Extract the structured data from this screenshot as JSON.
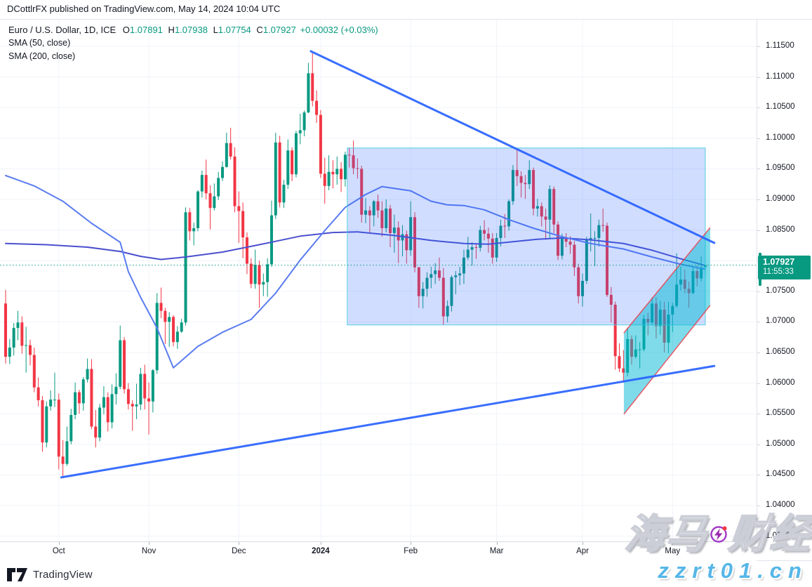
{
  "header": {
    "attribution": "DCottlrFX published on TradingView.com, May 14, 2024 10:04 UTC"
  },
  "legend": {
    "symbol": "Euro / U.S. Dollar, 1D, ICE",
    "o": {
      "k": "O",
      "v": "1.07891"
    },
    "h": {
      "k": "H",
      "v": "1.07938"
    },
    "l": {
      "k": "L",
      "v": "1.07754"
    },
    "c": {
      "k": "C",
      "v": "1.07927"
    },
    "change": "+0.00032 (+0.03%)",
    "sma50_label": "SMA (50, close)",
    "sma200_label": "SMA (200, close)"
  },
  "price_label": {
    "price": "1.07927",
    "countdown": "11:55:33"
  },
  "watermark": {
    "title": "海马财经",
    "site": "zzrt01.cn",
    "icon": "lightning-icon"
  },
  "footer": {
    "brand": "TradingView"
  },
  "colors": {
    "up": "#089981",
    "down": "#f23645",
    "sma50": "#5b7cf0",
    "sma200": "#4b50ce",
    "trendline": "#2962ff",
    "rect_fill": "rgba(41,98,255,0.22)",
    "rect_border": "#53d1e2",
    "channel_fill": "rgba(0,184,212,0.5)",
    "channel_border": "rgba(242,54,69,0.8)",
    "grid": "#f0f3fa",
    "price_line": "#089981",
    "axis_text": "#131722"
  },
  "chart_data": {
    "type": "candlestick",
    "title": "Euro / U.S. Dollar, 1D, ICE",
    "symbol": "EURUSD",
    "interval": "1D",
    "exchange": "ICE",
    "last": {
      "open": 1.07891,
      "high": 1.07938,
      "low": 1.07754,
      "close": 1.07927,
      "change": "+0.00032 (+0.03%)"
    },
    "ylim": [
      1.034,
      1.1194
    ],
    "grid": true,
    "y_ticks": [
      1.115,
      1.11,
      1.105,
      1.1,
      1.095,
      1.09,
      1.085,
      1.08,
      1.075,
      1.07,
      1.065,
      1.06,
      1.055,
      1.05,
      1.045,
      1.04,
      1.035
    ],
    "x_ticks": [
      {
        "label": "Oct",
        "i": 13
      },
      {
        "label": "Nov",
        "i": 35
      },
      {
        "label": "Dec",
        "i": 57
      },
      {
        "label": "2024",
        "i": 77,
        "strong": true
      },
      {
        "label": "Feb",
        "i": 99
      },
      {
        "label": "Mar",
        "i": 120
      },
      {
        "label": "Apr",
        "i": 141
      },
      {
        "label": "May",
        "i": 163
      }
    ],
    "current_price": 1.07927,
    "axis_range_bar": {
      "p1": 1.0813,
      "p2": 1.0759
    },
    "candles": [
      [
        1.073,
        1.0752,
        1.0632,
        1.0643
      ],
      [
        1.0643,
        1.0672,
        1.0631,
        1.0658
      ],
      [
        1.0658,
        1.0698,
        1.0645,
        1.069
      ],
      [
        1.069,
        1.0718,
        1.067,
        1.0699
      ],
      [
        1.0699,
        1.0709,
        1.0648,
        1.0661
      ],
      [
        1.0661,
        1.0692,
        1.0617,
        1.0662
      ],
      [
        1.0662,
        1.0671,
        1.0629,
        1.0646
      ],
      [
        1.0646,
        1.0658,
        1.0585,
        1.0593
      ],
      [
        1.0593,
        1.0609,
        1.0562,
        1.0572
      ],
      [
        1.0572,
        1.0579,
        1.0488,
        1.0503
      ],
      [
        1.0503,
        1.057,
        1.0495,
        1.0562
      ],
      [
        1.0562,
        1.0588,
        1.0555,
        1.0573
      ],
      [
        1.0573,
        1.0617,
        1.0561,
        1.0573
      ],
      [
        1.0573,
        1.0583,
        1.0459,
        1.048
      ],
      [
        1.048,
        1.0507,
        1.0448,
        1.0468
      ],
      [
        1.0468,
        1.0529,
        1.0465,
        1.0505
      ],
      [
        1.0505,
        1.0558,
        1.05,
        1.0548
      ],
      [
        1.0548,
        1.0601,
        1.0541,
        1.0585
      ],
      [
        1.0585,
        1.0589,
        1.055,
        1.0567
      ],
      [
        1.0567,
        1.061,
        1.0555,
        1.0606
      ],
      [
        1.0606,
        1.064,
        1.0601,
        1.0623
      ],
      [
        1.0623,
        1.0639,
        1.0525,
        1.0529
      ],
      [
        1.0529,
        1.0556,
        1.0495,
        1.0511
      ],
      [
        1.0511,
        1.0566,
        1.0505,
        1.056
      ],
      [
        1.056,
        1.0595,
        1.0549,
        1.0577
      ],
      [
        1.0577,
        1.0585,
        1.0521,
        1.0536
      ],
      [
        1.0536,
        1.0598,
        1.0526,
        1.0582
      ],
      [
        1.0582,
        1.0616,
        1.0565,
        1.0594
      ],
      [
        1.0594,
        1.0694,
        1.059,
        1.067
      ],
      [
        1.067,
        1.0675,
        1.0583,
        1.059
      ],
      [
        1.059,
        1.06,
        1.0557,
        1.0566
      ],
      [
        1.0566,
        1.0572,
        1.0522,
        1.0562
      ],
      [
        1.0562,
        1.0599,
        1.0541,
        1.0565
      ],
      [
        1.0565,
        1.0625,
        1.0556,
        1.0615
      ],
      [
        1.0615,
        1.063,
        1.0557,
        1.0575
      ],
      [
        1.0575,
        1.0601,
        1.0516,
        1.057
      ],
      [
        1.057,
        1.0623,
        1.0552,
        1.0621
      ],
      [
        1.0621,
        1.0747,
        1.0615,
        1.0731
      ],
      [
        1.0731,
        1.0756,
        1.0706,
        1.0718
      ],
      [
        1.0718,
        1.0723,
        1.0664,
        1.07
      ],
      [
        1.07,
        1.0716,
        1.0659,
        1.0708
      ],
      [
        1.0708,
        1.0711,
        1.066,
        1.0667
      ],
      [
        1.0667,
        1.0693,
        1.0656,
        1.0684
      ],
      [
        1.0684,
        1.0705,
        1.0682,
        1.0699
      ],
      [
        1.0699,
        1.0887,
        1.0694,
        1.0879
      ],
      [
        1.0879,
        1.0886,
        1.0833,
        1.0848
      ],
      [
        1.0848,
        1.0862,
        1.0825,
        1.0853
      ],
      [
        1.0853,
        1.0915,
        1.0848,
        1.0913
      ],
      [
        1.0913,
        1.0947,
        1.0903,
        1.094
      ],
      [
        1.094,
        1.0965,
        1.09,
        1.091
      ],
      [
        1.091,
        1.0923,
        1.0851,
        1.0886
      ],
      [
        1.0886,
        1.0926,
        1.0882,
        1.0905
      ],
      [
        1.0905,
        1.0945,
        1.0899,
        1.0935
      ],
      [
        1.0935,
        1.0962,
        1.093,
        1.0953
      ],
      [
        1.0953,
        1.1009,
        1.0952,
        1.0992
      ],
      [
        1.0992,
        1.1017,
        1.0965,
        1.097
      ],
      [
        1.097,
        1.0985,
        1.0879,
        1.0889
      ],
      [
        1.0889,
        1.0913,
        1.0829,
        1.0881
      ],
      [
        1.0881,
        1.0895,
        1.0804,
        1.0838
      ],
      [
        1.0838,
        1.0846,
        1.0778,
        1.0795
      ],
      [
        1.0795,
        1.0804,
        1.0755,
        1.0762
      ],
      [
        1.0762,
        1.0818,
        1.0754,
        1.0793
      ],
      [
        1.0793,
        1.08,
        1.0723,
        1.0761
      ],
      [
        1.0761,
        1.0779,
        1.0742,
        1.0765
      ],
      [
        1.0765,
        1.0804,
        1.0741,
        1.0794
      ],
      [
        1.0794,
        1.0898,
        1.079,
        1.0874
      ],
      [
        1.0874,
        1.1009,
        1.0868,
        1.0993
      ],
      [
        1.0993,
        1.1004,
        1.0887,
        1.0895
      ],
      [
        1.0895,
        1.0932,
        1.0886,
        1.0924
      ],
      [
        1.0924,
        1.0998,
        1.0917,
        1.098
      ],
      [
        1.098,
        1.0985,
        1.093,
        1.0941
      ],
      [
        1.0941,
        1.1012,
        1.0936,
        1.1008
      ],
      [
        1.1008,
        1.104,
        1.099,
        1.1013
      ],
      [
        1.1013,
        1.1045,
        1.1003,
        1.1042
      ],
      [
        1.1042,
        1.1123,
        1.1041,
        1.1106
      ],
      [
        1.1106,
        1.1139,
        1.1052,
        1.1061
      ],
      [
        1.1061,
        1.1078,
        1.1025,
        1.1038
      ],
      [
        1.1038,
        1.1046,
        1.0935,
        1.0942
      ],
      [
        1.0942,
        1.0968,
        1.0893,
        1.0922
      ],
      [
        1.0922,
        1.0972,
        1.0915,
        1.0945
      ],
      [
        1.0945,
        1.0964,
        1.0918,
        1.0941
      ],
      [
        1.0941,
        1.097,
        1.0924,
        1.095
      ],
      [
        1.095,
        1.0961,
        1.0912,
        1.0933
      ],
      [
        1.0933,
        1.0978,
        1.0921,
        1.0973
      ],
      [
        1.0973,
        1.0984,
        1.0952,
        1.0972
      ],
      [
        1.0972,
        1.0996,
        1.0941,
        1.0951
      ],
      [
        1.0951,
        1.0967,
        1.0934,
        1.095
      ],
      [
        1.095,
        1.0955,
        1.0862,
        1.0875
      ],
      [
        1.0875,
        1.0902,
        1.0861,
        1.0882
      ],
      [
        1.0882,
        1.0889,
        1.0845,
        1.0874
      ],
      [
        1.0874,
        1.0899,
        1.0856,
        1.0897
      ],
      [
        1.0897,
        1.0908,
        1.087,
        1.0882
      ],
      [
        1.0882,
        1.0897,
        1.0839,
        1.0853
      ],
      [
        1.0853,
        1.09,
        1.0846,
        1.0885
      ],
      [
        1.0885,
        1.0891,
        1.0822,
        1.0845
      ],
      [
        1.0845,
        1.0875,
        1.0813,
        1.0854
      ],
      [
        1.0854,
        1.0864,
        1.0796,
        1.0833
      ],
      [
        1.0833,
        1.0858,
        1.0807,
        1.0843
      ],
      [
        1.0843,
        1.0849,
        1.0795,
        1.0817
      ],
      [
        1.0817,
        1.0897,
        1.0808,
        1.0871
      ],
      [
        1.0871,
        1.0879,
        1.0781,
        1.0789
      ],
      [
        1.0789,
        1.079,
        1.0723,
        1.0742
      ],
      [
        1.0742,
        1.0765,
        1.0722,
        1.0754
      ],
      [
        1.0754,
        1.0781,
        1.0741,
        1.0772
      ],
      [
        1.0772,
        1.079,
        1.0755,
        1.0778
      ],
      [
        1.0778,
        1.0796,
        1.0762,
        1.0784
      ],
      [
        1.0784,
        1.0805,
        1.0767,
        1.0772
      ],
      [
        1.0772,
        1.0788,
        1.0695,
        1.0709
      ],
      [
        1.0709,
        1.0735,
        1.0699,
        1.0726
      ],
      [
        1.0726,
        1.0776,
        1.0717,
        1.0773
      ],
      [
        1.0773,
        1.0783,
        1.0745,
        1.0776
      ],
      [
        1.0776,
        1.079,
        1.076,
        1.0779
      ],
      [
        1.0779,
        1.0818,
        1.0762,
        1.0805
      ],
      [
        1.0805,
        1.0839,
        1.0801,
        1.0818
      ],
      [
        1.0818,
        1.083,
        1.0792,
        1.0822
      ],
      [
        1.0822,
        1.0828,
        1.0803,
        1.0821
      ],
      [
        1.0821,
        1.0857,
        1.0815,
        1.085
      ],
      [
        1.085,
        1.0866,
        1.0833,
        1.0844
      ],
      [
        1.0844,
        1.0854,
        1.0813,
        1.0836
      ],
      [
        1.0836,
        1.0845,
        1.0795,
        1.0805
      ],
      [
        1.0805,
        1.0845,
        1.0798,
        1.0837
      ],
      [
        1.0837,
        1.0867,
        1.0823,
        1.0857
      ],
      [
        1.0857,
        1.0876,
        1.0837,
        1.0856
      ],
      [
        1.0856,
        1.09,
        1.0849,
        1.0897
      ],
      [
        1.0897,
        1.0956,
        1.0891,
        1.0948
      ],
      [
        1.0948,
        1.0981,
        1.0922,
        1.0938
      ],
      [
        1.0938,
        1.0946,
        1.0903,
        1.0927
      ],
      [
        1.0927,
        1.094,
        1.0901,
        1.0925
      ],
      [
        1.0925,
        1.0964,
        1.0917,
        1.0948
      ],
      [
        1.0948,
        1.0952,
        1.0874,
        1.0885
      ],
      [
        1.0885,
        1.0901,
        1.0872,
        1.0889
      ],
      [
        1.0889,
        1.0895,
        1.0856,
        1.0872
      ],
      [
        1.0872,
        1.0885,
        1.0834,
        1.0867
      ],
      [
        1.0867,
        1.0923,
        1.0835,
        1.0917
      ],
      [
        1.0917,
        1.0921,
        1.0845,
        1.0859
      ],
      [
        1.0859,
        1.0864,
        1.0801,
        1.0808
      ],
      [
        1.0808,
        1.0844,
        1.0802,
        1.0837
      ],
      [
        1.0837,
        1.0845,
        1.0822,
        1.0831
      ],
      [
        1.0831,
        1.084,
        1.0811,
        1.0826
      ],
      [
        1.0826,
        1.0832,
        1.0775,
        1.0789
      ],
      [
        1.0789,
        1.0795,
        1.073,
        1.0742
      ],
      [
        1.0742,
        1.0779,
        1.0725,
        1.0767
      ],
      [
        1.0767,
        1.0839,
        1.0762,
        1.0835
      ],
      [
        1.0835,
        1.0877,
        1.0815,
        1.0837
      ],
      [
        1.0837,
        1.0848,
        1.0791,
        1.0837
      ],
      [
        1.0837,
        1.0867,
        1.0823,
        1.0858
      ],
      [
        1.0858,
        1.0885,
        1.0847,
        1.0857
      ],
      [
        1.0857,
        1.0862,
        1.0741,
        1.0744
      ],
      [
        1.0744,
        1.0757,
        1.0699,
        1.0728
      ],
      [
        1.0728,
        1.0733,
        1.0622,
        1.0644
      ],
      [
        1.0644,
        1.0665,
        1.0618,
        1.0624
      ],
      [
        1.0624,
        1.0654,
        1.0601,
        1.0617
      ],
      [
        1.0617,
        1.069,
        1.0611,
        1.0672
      ],
      [
        1.0672,
        1.0678,
        1.063,
        1.0643
      ],
      [
        1.0643,
        1.0678,
        1.064,
        1.0655
      ],
      [
        1.0655,
        1.0667,
        1.0624,
        1.0655
      ],
      [
        1.0655,
        1.0711,
        1.0652,
        1.0705
      ],
      [
        1.0705,
        1.0715,
        1.0678,
        1.0699
      ],
      [
        1.0699,
        1.074,
        1.0695,
        1.073
      ],
      [
        1.073,
        1.074,
        1.0673,
        1.0693
      ],
      [
        1.0693,
        1.0734,
        1.0679,
        1.072
      ],
      [
        1.072,
        1.0733,
        1.065,
        1.0666
      ],
      [
        1.0666,
        1.0733,
        1.0649,
        1.0712
      ],
      [
        1.0712,
        1.0731,
        1.0683,
        1.0726
      ],
      [
        1.0726,
        1.0812,
        1.0723,
        1.0761
      ],
      [
        1.0761,
        1.079,
        1.0751,
        1.0769
      ],
      [
        1.0769,
        1.0785,
        1.0747,
        1.0754
      ],
      [
        1.0754,
        1.0766,
        1.0723,
        1.0747
      ],
      [
        1.0747,
        1.0791,
        1.0745,
        1.0783
      ],
      [
        1.0783,
        1.0792,
        1.0758,
        1.0771
      ],
      [
        1.0771,
        1.0807,
        1.0766,
        1.0789
      ],
      [
        1.07891,
        1.07938,
        1.07754,
        1.07927
      ]
    ],
    "sma50": {
      "period": 50,
      "points": [
        [
          0,
          1.0939
        ],
        [
          7,
          1.0922
        ],
        [
          14,
          1.0897
        ],
        [
          21,
          1.0861
        ],
        [
          28,
          1.083
        ],
        [
          30,
          1.0782
        ],
        [
          33,
          1.074
        ],
        [
          37,
          1.069
        ],
        [
          41,
          1.0625
        ],
        [
          47,
          1.066
        ],
        [
          53,
          1.0683
        ],
        [
          60,
          1.0704
        ],
        [
          66,
          1.0747
        ],
        [
          72,
          1.0801
        ],
        [
          78,
          1.0849
        ],
        [
          83,
          1.0887
        ],
        [
          88,
          1.0908
        ],
        [
          92,
          1.0921
        ],
        [
          99,
          1.0914
        ],
        [
          104,
          1.0897
        ],
        [
          108,
          1.0891
        ],
        [
          112,
          1.089
        ],
        [
          117,
          1.0883
        ],
        [
          123,
          1.0867
        ],
        [
          129,
          1.0853
        ],
        [
          136,
          1.0839
        ],
        [
          143,
          1.0828
        ],
        [
          151,
          1.0819
        ],
        [
          158,
          1.0806
        ],
        [
          165,
          1.0794
        ],
        [
          171,
          1.0786
        ]
      ]
    },
    "sma200": {
      "period": 200,
      "points": [
        [
          0,
          1.0828
        ],
        [
          10,
          1.0826
        ],
        [
          20,
          1.0822
        ],
        [
          28,
          1.0815
        ],
        [
          33,
          1.0807
        ],
        [
          38,
          1.0802
        ],
        [
          44,
          1.0806
        ],
        [
          53,
          1.0814
        ],
        [
          62,
          1.0826
        ],
        [
          72,
          1.084
        ],
        [
          80,
          1.0846
        ],
        [
          86,
          1.0847
        ],
        [
          95,
          1.0841
        ],
        [
          104,
          1.0833
        ],
        [
          112,
          1.0828
        ],
        [
          118,
          1.0827
        ],
        [
          124,
          1.0831
        ],
        [
          130,
          1.0835
        ],
        [
          136,
          1.0837
        ],
        [
          143,
          1.0834
        ],
        [
          151,
          1.0828
        ],
        [
          158,
          1.0817
        ],
        [
          165,
          1.0803
        ],
        [
          171,
          1.0792
        ]
      ]
    },
    "drawings": {
      "trendline_down": {
        "from": [
          74.6,
          1.1142
        ],
        "to": [
          173.2,
          1.0829
        ]
      },
      "trendline_up": {
        "from": [
          13.6,
          1.0446
        ],
        "to": [
          173.2,
          1.0628
        ]
      },
      "rectangle": {
        "i1": 83.5,
        "i2": 171.0,
        "p_top": 1.0984,
        "p_bottom": 1.0695
      },
      "channel": {
        "i1": 151.1,
        "i2": 172.2,
        "upper": [
          1.0682,
          1.0854
        ],
        "lower": [
          1.0549,
          1.0727
        ]
      }
    }
  }
}
